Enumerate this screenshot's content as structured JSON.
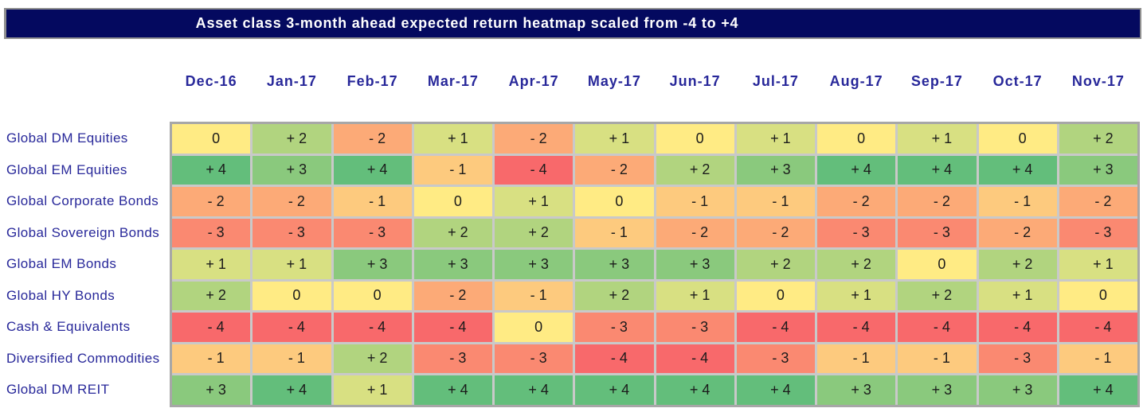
{
  "title": "Asset class 3-month ahead expected return heatmap scaled from -4 to +4",
  "theme": {
    "title_bar_bg": "#04095F",
    "title_text_color": "#FFFFFF",
    "label_text_color": "#28289A",
    "cell_text_color": "#1B1B1B",
    "grid_line_color": "#C9C9C9",
    "grid_border_color": "#A7A7A7"
  },
  "chart_data": {
    "type": "heatmap",
    "title": "Asset class 3-month ahead expected return heatmap scaled from -4 to +4",
    "scale_min": -4,
    "scale_max": 4,
    "value_format": "signed integer with space, e.g. '+ 2', '- 3', '0'",
    "columns": [
      "Dec-16",
      "Jan-17",
      "Feb-17",
      "Mar-17",
      "Apr-17",
      "May-17",
      "Jun-17",
      "Jul-17",
      "Aug-17",
      "Sep-17",
      "Oct-17",
      "Nov-17"
    ],
    "rows": [
      "Global DM Equities",
      "Global EM Equities",
      "Global Corporate Bonds",
      "Global Sovereign Bonds",
      "Global EM Bonds",
      "Global HY Bonds",
      "Cash & Equivalents",
      "Diversified Commodities",
      "Global DM REIT"
    ],
    "values": [
      [
        0,
        2,
        -2,
        1,
        -2,
        1,
        0,
        1,
        0,
        1,
        0,
        2
      ],
      [
        4,
        3,
        4,
        -1,
        -4,
        -2,
        2,
        3,
        4,
        4,
        4,
        3
      ],
      [
        -2,
        -2,
        -1,
        0,
        1,
        0,
        -1,
        -1,
        -2,
        -2,
        -1,
        -2
      ],
      [
        -3,
        -3,
        -3,
        2,
        2,
        -1,
        -2,
        -2,
        -3,
        -3,
        -2,
        -3
      ],
      [
        1,
        1,
        3,
        3,
        3,
        3,
        3,
        2,
        2,
        0,
        2,
        1
      ],
      [
        2,
        0,
        0,
        -2,
        -1,
        2,
        1,
        0,
        1,
        2,
        1,
        0
      ],
      [
        -4,
        -4,
        -4,
        -4,
        0,
        -3,
        -3,
        -4,
        -4,
        -4,
        -4,
        -4
      ],
      [
        -1,
        -1,
        2,
        -3,
        -3,
        -4,
        -4,
        -3,
        -1,
        -1,
        -3,
        -1
      ],
      [
        3,
        4,
        1,
        4,
        4,
        4,
        4,
        4,
        3,
        3,
        3,
        4
      ]
    ],
    "colors": {
      "-4": "#F8696B",
      "-3": "#FA8971",
      "-2": "#FCAA77",
      "-1": "#FDCA7E",
      "0": "#FFEB84",
      "1": "#D8E082",
      "2": "#B1D47F",
      "3": "#8AC97D",
      "4": "#63BE7B"
    },
    "legend_position": "none",
    "grid": true
  }
}
